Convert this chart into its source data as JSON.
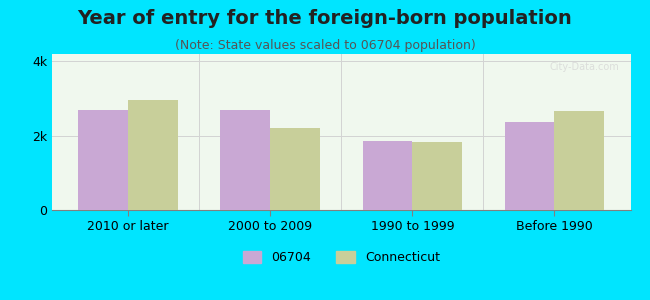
{
  "title": "Year of entry for the foreign-born population",
  "subtitle": "(Note: State values scaled to 06704 population)",
  "categories": [
    "2010 or later",
    "2000 to 2009",
    "1990 to 1999",
    "Before 1990"
  ],
  "series_06704": [
    2700,
    2680,
    1850,
    2380
  ],
  "series_connecticut": [
    2950,
    2200,
    1820,
    2660
  ],
  "color_06704": "#c9a8d4",
  "color_connecticut": "#c8cf9a",
  "background_outer": "#00e5ff",
  "background_inner": "#f0f8ee",
  "ylim": [
    0,
    4200
  ],
  "ytick_labels": [
    "0",
    "2k",
    "4k"
  ],
  "bar_width": 0.35,
  "legend_label_06704": "06704",
  "legend_label_connecticut": "Connecticut",
  "title_fontsize": 14,
  "subtitle_fontsize": 9,
  "tick_fontsize": 9,
  "legend_fontsize": 9
}
